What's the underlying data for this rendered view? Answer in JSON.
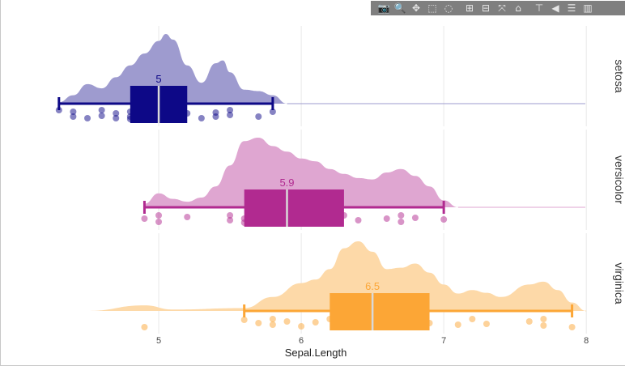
{
  "modebar": {
    "buttons": [
      {
        "name": "camera-icon",
        "glyph": "📷"
      },
      {
        "name": "zoom-icon",
        "glyph": "🔍"
      },
      {
        "name": "pan-icon",
        "glyph": "✥"
      },
      {
        "name": "box-select-icon",
        "glyph": "⬚"
      },
      {
        "name": "lasso-select-icon",
        "glyph": "◌"
      },
      {
        "name": "zoom-in-icon",
        "glyph": "⊞"
      },
      {
        "name": "zoom-out-icon",
        "glyph": "⊟"
      },
      {
        "name": "autoscale-icon",
        "glyph": "⤧"
      },
      {
        "name": "reset-axes-icon",
        "glyph": "⌂"
      },
      {
        "name": "spike-lines-icon",
        "glyph": "⊤"
      },
      {
        "name": "hover-closest-icon",
        "glyph": "◀"
      },
      {
        "name": "hover-compare-icon",
        "glyph": "☰"
      },
      {
        "name": "plotly-logo-icon",
        "glyph": "▥"
      }
    ]
  },
  "chart_data": {
    "type": "raincloud",
    "xlabel": "Sepal.Length",
    "xlim": [
      4.0,
      8.05
    ],
    "xticks": [
      5,
      6,
      7,
      8
    ],
    "grid": true,
    "facets": [
      {
        "name": "setosa",
        "color": "#0d0887",
        "density_color": "#9e9bcf",
        "median_label": "5",
        "box": {
          "q1": 4.8,
          "median": 5.0,
          "q3": 5.2,
          "whisker_low": 4.3,
          "whisker_high": 5.8
        },
        "density": [
          [
            4.3,
            0.02
          ],
          [
            4.4,
            0.12
          ],
          [
            4.5,
            0.28
          ],
          [
            4.6,
            0.22
          ],
          [
            4.7,
            0.38
          ],
          [
            4.8,
            0.55
          ],
          [
            4.9,
            0.72
          ],
          [
            5.0,
            0.9
          ],
          [
            5.05,
            1.0
          ],
          [
            5.1,
            0.92
          ],
          [
            5.2,
            0.55
          ],
          [
            5.3,
            0.3
          ],
          [
            5.4,
            0.58
          ],
          [
            5.45,
            0.62
          ],
          [
            5.5,
            0.45
          ],
          [
            5.6,
            0.2
          ],
          [
            5.7,
            0.18
          ],
          [
            5.8,
            0.12
          ],
          [
            5.9,
            0.0
          ]
        ],
        "points": [
          [
            4.3,
            0.2
          ],
          [
            4.4,
            0.3
          ],
          [
            4.4,
            0.6
          ],
          [
            4.5,
            0.7
          ],
          [
            4.6,
            0.2
          ],
          [
            4.6,
            0.55
          ],
          [
            4.7,
            0.4
          ],
          [
            4.7,
            0.7
          ],
          [
            4.8,
            0.3
          ],
          [
            4.8,
            0.6
          ],
          [
            4.8,
            0.75
          ],
          [
            4.9,
            0.5
          ],
          [
            5.0,
            0.25
          ],
          [
            5.0,
            0.45
          ],
          [
            5.0,
            0.7
          ],
          [
            5.1,
            0.3
          ],
          [
            5.1,
            0.6
          ],
          [
            5.2,
            0.4
          ],
          [
            5.3,
            0.7
          ],
          [
            5.4,
            0.35
          ],
          [
            5.4,
            0.6
          ],
          [
            5.5,
            0.2
          ],
          [
            5.5,
            0.5
          ],
          [
            5.7,
            0.6
          ],
          [
            5.8,
            0.3
          ]
        ]
      },
      {
        "name": "versicolor",
        "color": "#b12a90",
        "density_color": "#dfa6d1",
        "median_label": "5.9",
        "box": {
          "q1": 5.6,
          "median": 5.9,
          "q3": 6.3,
          "whisker_low": 4.9,
          "whisker_high": 7.0
        },
        "density": [
          [
            4.9,
            0.05
          ],
          [
            5.0,
            0.2
          ],
          [
            5.1,
            0.12
          ],
          [
            5.2,
            0.08
          ],
          [
            5.3,
            0.14
          ],
          [
            5.4,
            0.3
          ],
          [
            5.5,
            0.6
          ],
          [
            5.6,
            0.95
          ],
          [
            5.7,
            1.0
          ],
          [
            5.8,
            0.88
          ],
          [
            5.9,
            0.8
          ],
          [
            6.0,
            0.7
          ],
          [
            6.1,
            0.66
          ],
          [
            6.2,
            0.55
          ],
          [
            6.3,
            0.48
          ],
          [
            6.4,
            0.42
          ],
          [
            6.5,
            0.4
          ],
          [
            6.6,
            0.5
          ],
          [
            6.7,
            0.55
          ],
          [
            6.8,
            0.45
          ],
          [
            6.9,
            0.3
          ],
          [
            7.0,
            0.1
          ],
          [
            7.1,
            0.0
          ]
        ],
        "points": [
          [
            4.9,
            0.5
          ],
          [
            5.0,
            0.7
          ],
          [
            5.0,
            0.3
          ],
          [
            5.2,
            0.4
          ],
          [
            5.5,
            0.6
          ],
          [
            5.5,
            0.3
          ],
          [
            5.6,
            0.5
          ],
          [
            5.6,
            0.75
          ],
          [
            5.7,
            0.4
          ],
          [
            5.8,
            0.6
          ],
          [
            5.9,
            0.5
          ],
          [
            6.0,
            0.3
          ],
          [
            6.0,
            0.65
          ],
          [
            6.1,
            0.4
          ],
          [
            6.2,
            0.55
          ],
          [
            6.3,
            0.3
          ],
          [
            6.4,
            0.6
          ],
          [
            6.6,
            0.5
          ],
          [
            6.7,
            0.3
          ],
          [
            6.7,
            0.7
          ],
          [
            6.8,
            0.45
          ],
          [
            7.0,
            0.55
          ]
        ]
      },
      {
        "name": "virginica",
        "color": "#fca636",
        "density_color": "#fdd9a8",
        "median_label": "6.5",
        "box": {
          "q1": 6.2,
          "median": 6.5,
          "q3": 6.9,
          "whisker_low": 5.6,
          "whisker_high": 7.9
        },
        "density": [
          [
            4.5,
            0.0
          ],
          [
            4.9,
            0.08
          ],
          [
            5.1,
            0.02
          ],
          [
            5.6,
            0.04
          ],
          [
            5.8,
            0.2
          ],
          [
            6.0,
            0.4
          ],
          [
            6.1,
            0.45
          ],
          [
            6.2,
            0.6
          ],
          [
            6.3,
            0.9
          ],
          [
            6.4,
            1.0
          ],
          [
            6.5,
            0.85
          ],
          [
            6.6,
            0.6
          ],
          [
            6.7,
            0.62
          ],
          [
            6.8,
            0.68
          ],
          [
            6.9,
            0.55
          ],
          [
            7.0,
            0.38
          ],
          [
            7.1,
            0.25
          ],
          [
            7.2,
            0.3
          ],
          [
            7.3,
            0.26
          ],
          [
            7.4,
            0.2
          ],
          [
            7.6,
            0.38
          ],
          [
            7.7,
            0.42
          ],
          [
            7.8,
            0.3
          ],
          [
            7.9,
            0.12
          ],
          [
            8.0,
            0.0
          ]
        ],
        "points": [
          [
            4.9,
            0.8
          ],
          [
            5.6,
            0.35
          ],
          [
            5.7,
            0.55
          ],
          [
            5.8,
            0.3
          ],
          [
            5.8,
            0.65
          ],
          [
            5.9,
            0.45
          ],
          [
            6.0,
            0.75
          ],
          [
            6.1,
            0.5
          ],
          [
            6.2,
            0.3
          ],
          [
            6.3,
            0.55
          ],
          [
            6.4,
            0.7
          ],
          [
            6.5,
            0.4
          ],
          [
            6.7,
            0.6
          ],
          [
            6.8,
            0.35
          ],
          [
            6.9,
            0.55
          ],
          [
            7.1,
            0.65
          ],
          [
            7.2,
            0.3
          ],
          [
            7.3,
            0.6
          ],
          [
            7.6,
            0.45
          ],
          [
            7.7,
            0.3
          ],
          [
            7.7,
            0.7
          ],
          [
            7.9,
            0.8
          ]
        ]
      }
    ]
  }
}
